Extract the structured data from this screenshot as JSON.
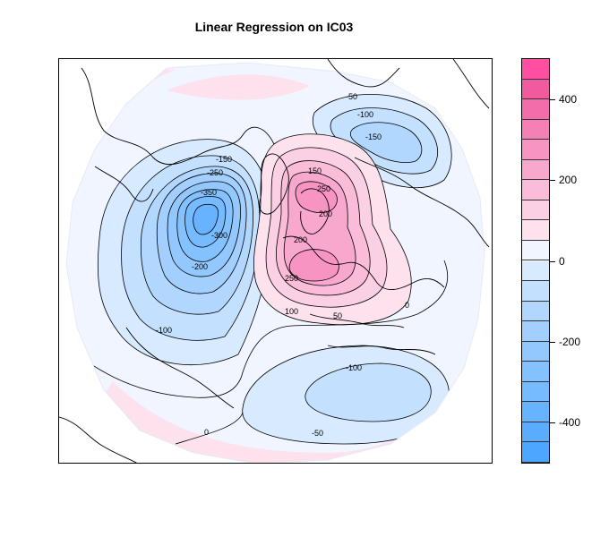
{
  "title": "Linear Regression on IC03",
  "colorbar": {
    "levels": [
      -500,
      -450,
      -400,
      -350,
      -300,
      -250,
      -200,
      -150,
      -100,
      -50,
      0,
      50,
      100,
      150,
      200,
      250,
      300,
      350,
      400,
      450,
      500
    ],
    "ticks": [
      {
        "value": 400,
        "label": "400"
      },
      {
        "value": 200,
        "label": "200"
      },
      {
        "value": 0,
        "label": "0"
      },
      {
        "value": -200,
        "label": "-200"
      },
      {
        "value": -400,
        "label": "-400"
      }
    ],
    "colors_negative": [
      "#4da6ff",
      "#5aacff",
      "#68b3ff",
      "#76baff",
      "#84c1ff",
      "#93c8ff",
      "#a2cfff",
      "#b2d7ff",
      "#c3e0ff",
      "#d7eaff"
    ],
    "colors_positive": [
      "#f0f5ff",
      "#fde2ee",
      "#fcd0e4",
      "#fbbcd9",
      "#f9a8cd",
      "#f794c2",
      "#f580b6",
      "#f46dab",
      "#f25aa0",
      "#ff4fa3"
    ]
  },
  "contour_labels": [
    "-50",
    "-100",
    "-150",
    "-150",
    "-250",
    "-350",
    "-300",
    "-200",
    "-100",
    "150",
    "250",
    "200",
    "200",
    "250",
    "100",
    "50",
    "0",
    "-100",
    "-50",
    "0"
  ]
}
